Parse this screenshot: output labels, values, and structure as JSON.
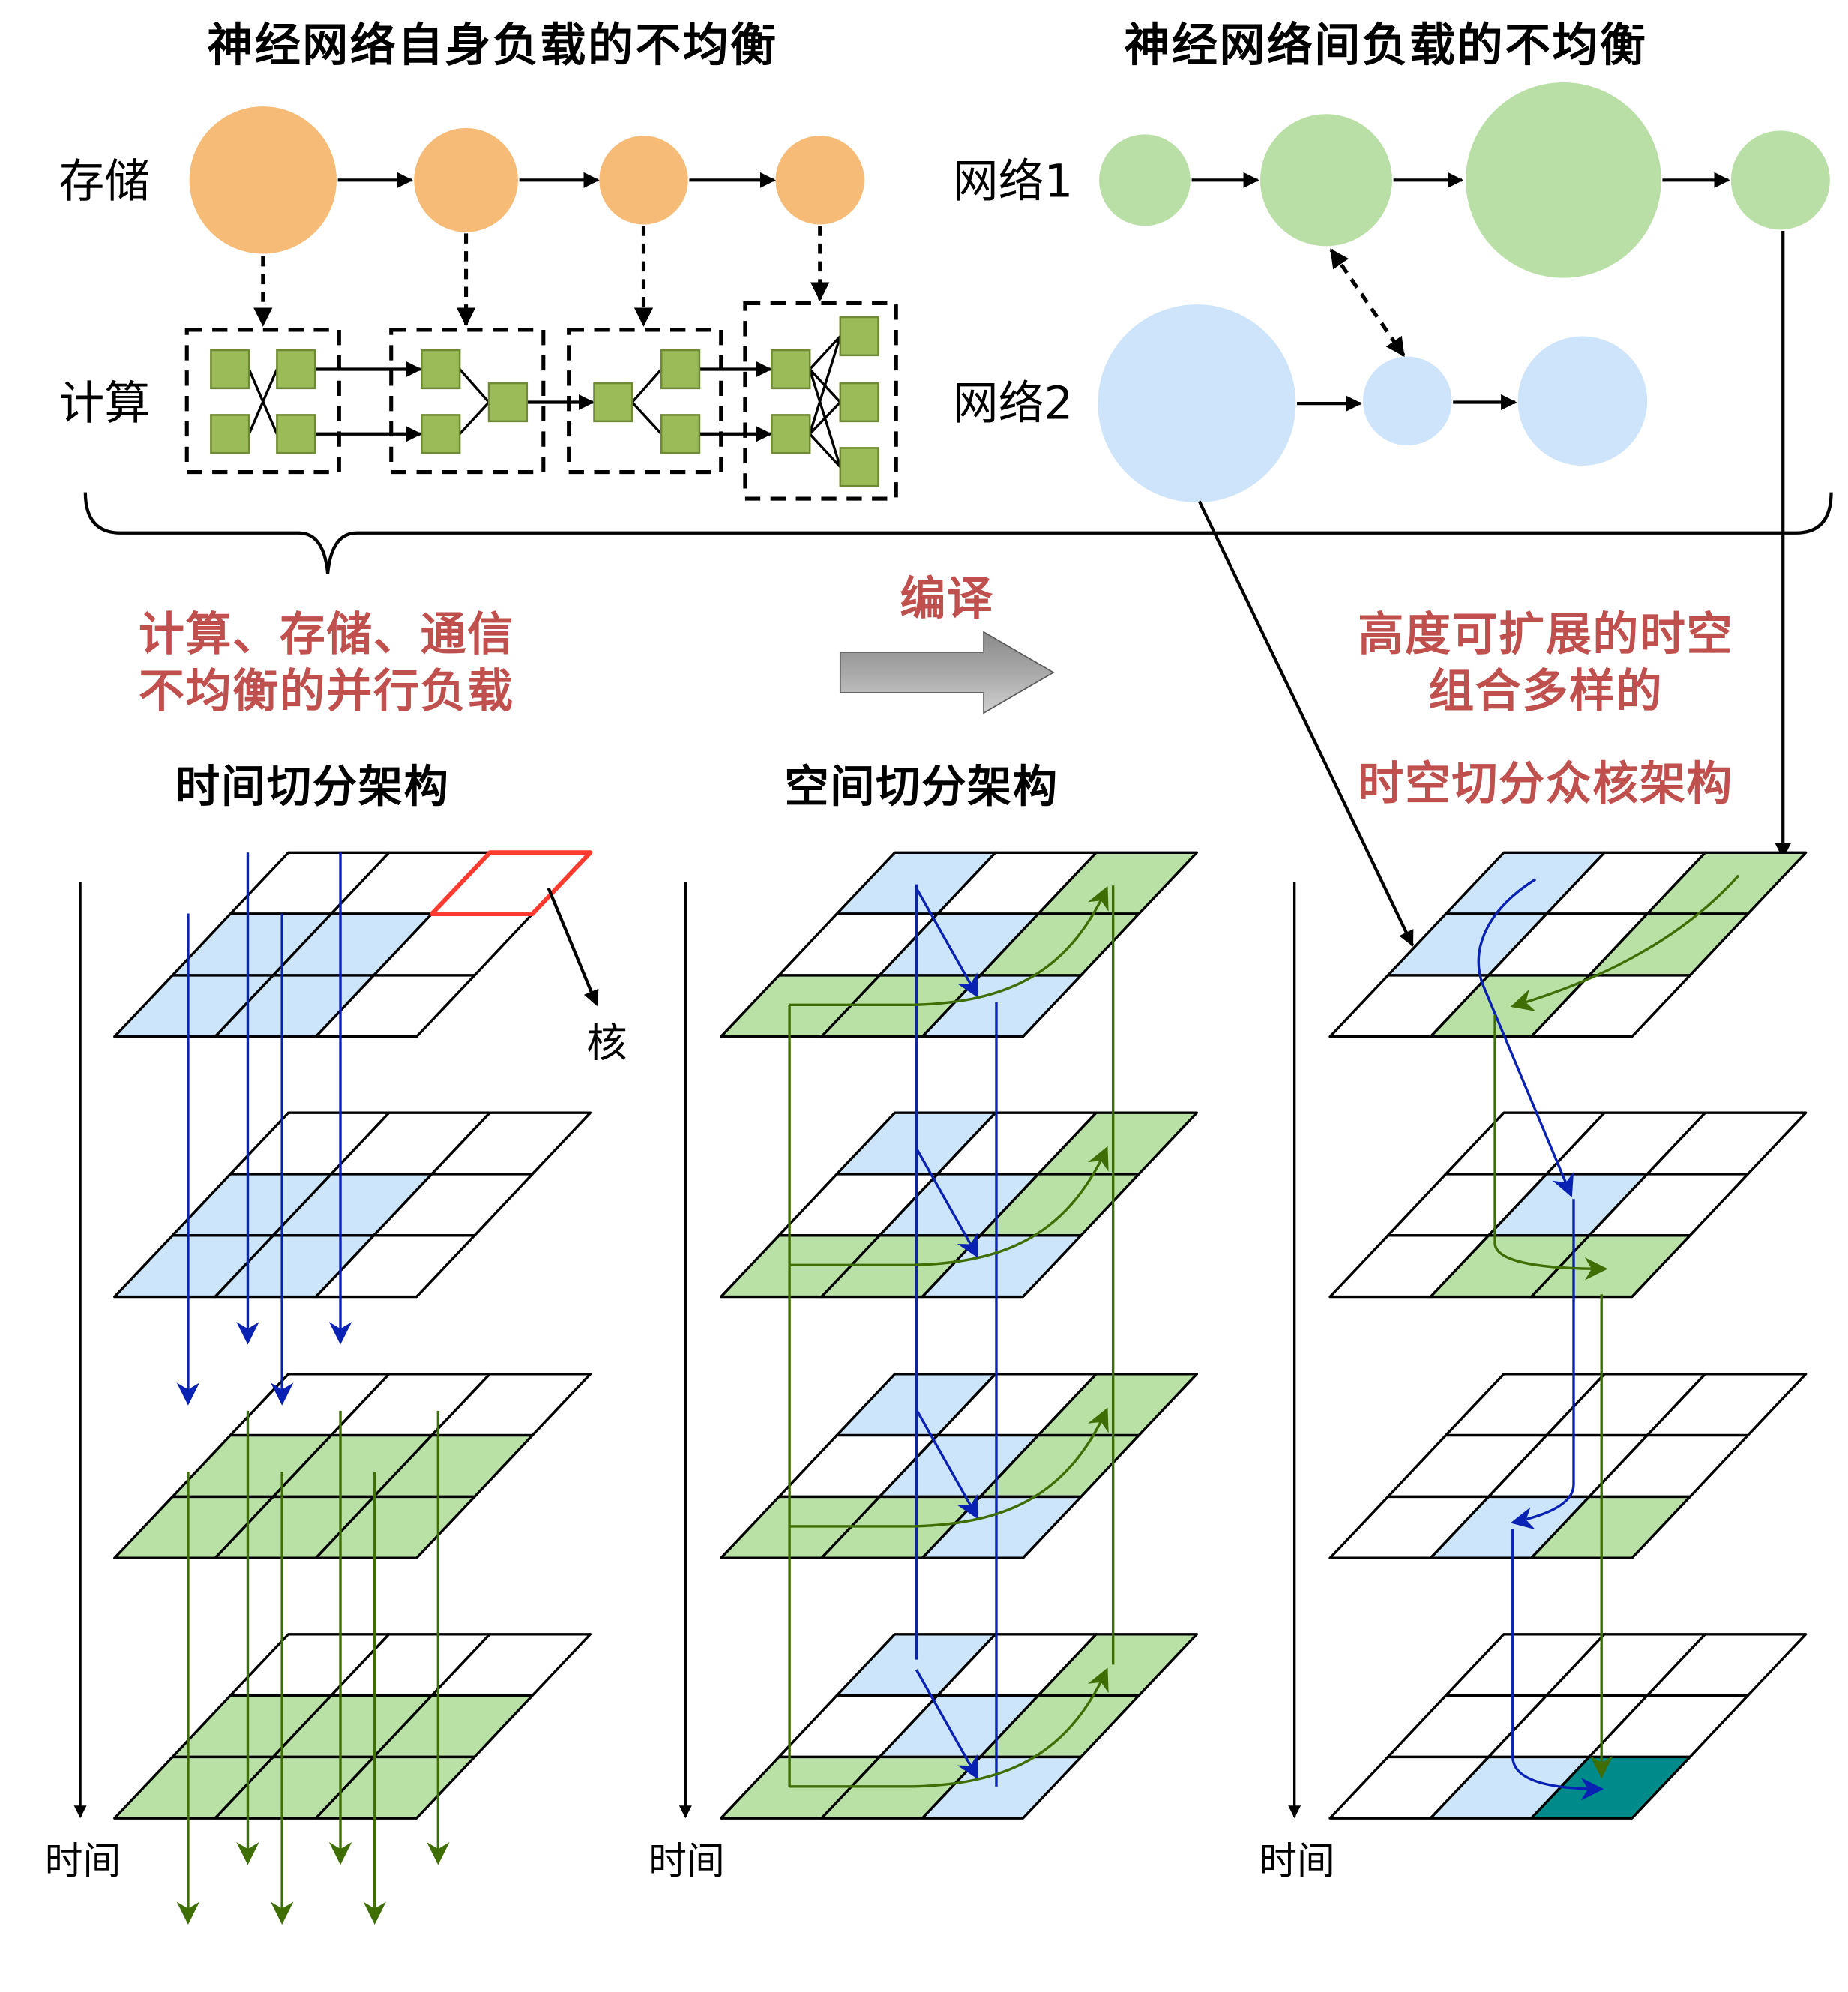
{
  "intra_network": {
    "title": "神经网络自身负载的不均衡",
    "storage_label": "存储",
    "compute_label": "计算"
  },
  "inter_network": {
    "title": "神经网络间负载的不均衡",
    "network1_label": "网络1",
    "network2_label": "网络2"
  },
  "left_caption": {
    "line1": "计算、存储、通信",
    "line2": "不均衡的并行负载"
  },
  "compile_label": "编译",
  "right_caption": {
    "line1": "高度可扩展的时空",
    "line2": "组合多样的",
    "line3": "时空切分众核架构"
  },
  "architectures": [
    {
      "title": "时间切分架构",
      "axis_label": "时间",
      "core_label": "核"
    },
    {
      "title": "空间切分架构",
      "axis_label": "时间"
    },
    {
      "axis_label": "时间"
    }
  ],
  "colors": {
    "storage_node": "#f6bb77",
    "network1_node": "#badfa6",
    "network2_node": "#cde4fa",
    "compute_block": "#9bbb59",
    "blue_fill": "#cce5fb",
    "green_fill": "#b9e0a5",
    "teal_fill": "#008b8b",
    "blue_flow": "#0a22b4",
    "green_flow": "#3f6e05",
    "caption_red": "#c0504d",
    "highlight": "#ff3b30"
  }
}
